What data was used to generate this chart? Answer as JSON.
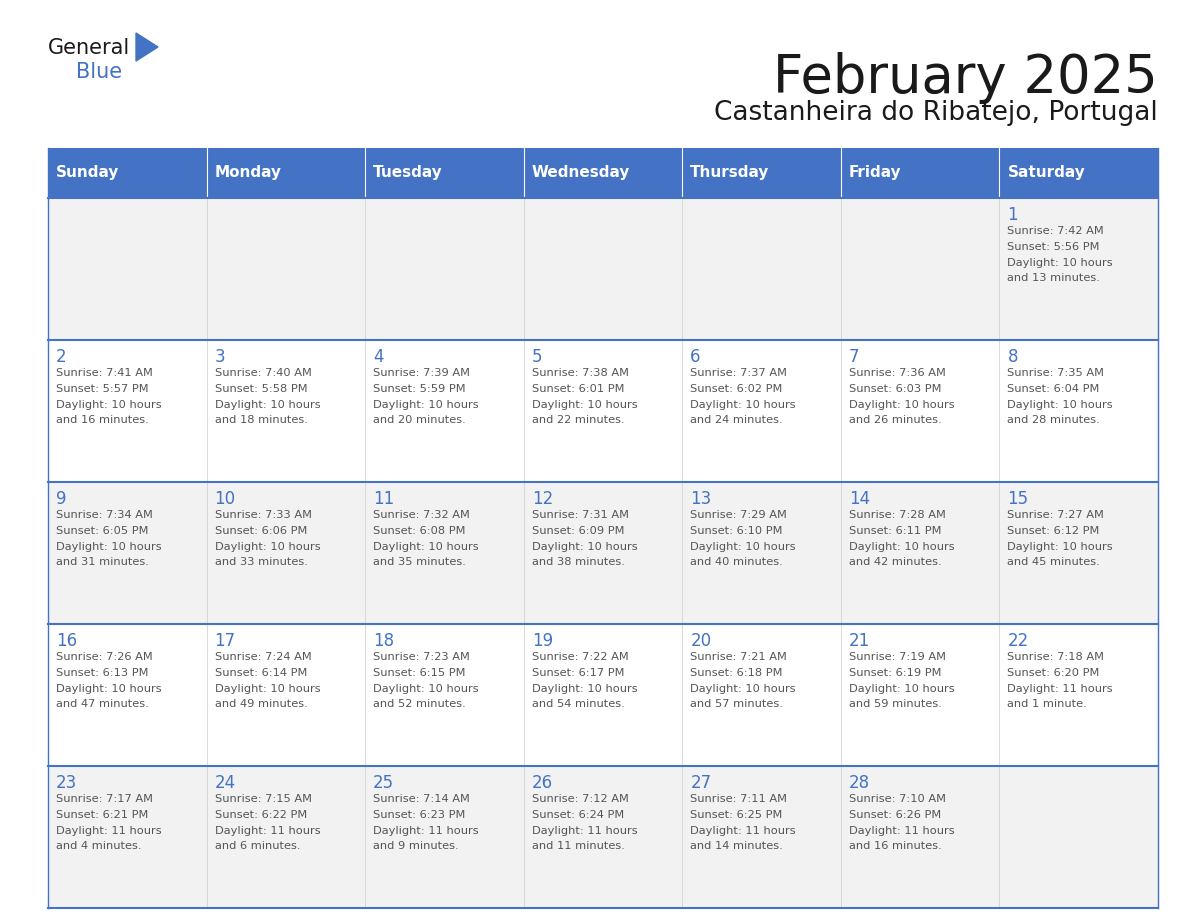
{
  "title": "February 2025",
  "subtitle": "Castanheira do Ribatejo, Portugal",
  "header_bg": "#4472C4",
  "header_text_color": "#FFFFFF",
  "cell_bg_even": "#F2F2F2",
  "cell_bg_odd": "#FFFFFF",
  "day_number_color": "#4472C4",
  "info_text_color": "#555555",
  "border_color": "#4472C4",
  "days_of_week": [
    "Sunday",
    "Monday",
    "Tuesday",
    "Wednesday",
    "Thursday",
    "Friday",
    "Saturday"
  ],
  "weeks": [
    [
      {
        "day": null,
        "sunrise": null,
        "sunset": null,
        "daylight": null
      },
      {
        "day": null,
        "sunrise": null,
        "sunset": null,
        "daylight": null
      },
      {
        "day": null,
        "sunrise": null,
        "sunset": null,
        "daylight": null
      },
      {
        "day": null,
        "sunrise": null,
        "sunset": null,
        "daylight": null
      },
      {
        "day": null,
        "sunrise": null,
        "sunset": null,
        "daylight": null
      },
      {
        "day": null,
        "sunrise": null,
        "sunset": null,
        "daylight": null
      },
      {
        "day": 1,
        "sunrise": "7:42 AM",
        "sunset": "5:56 PM",
        "daylight": "10 hours\nand 13 minutes."
      }
    ],
    [
      {
        "day": 2,
        "sunrise": "7:41 AM",
        "sunset": "5:57 PM",
        "daylight": "10 hours\nand 16 minutes."
      },
      {
        "day": 3,
        "sunrise": "7:40 AM",
        "sunset": "5:58 PM",
        "daylight": "10 hours\nand 18 minutes."
      },
      {
        "day": 4,
        "sunrise": "7:39 AM",
        "sunset": "5:59 PM",
        "daylight": "10 hours\nand 20 minutes."
      },
      {
        "day": 5,
        "sunrise": "7:38 AM",
        "sunset": "6:01 PM",
        "daylight": "10 hours\nand 22 minutes."
      },
      {
        "day": 6,
        "sunrise": "7:37 AM",
        "sunset": "6:02 PM",
        "daylight": "10 hours\nand 24 minutes."
      },
      {
        "day": 7,
        "sunrise": "7:36 AM",
        "sunset": "6:03 PM",
        "daylight": "10 hours\nand 26 minutes."
      },
      {
        "day": 8,
        "sunrise": "7:35 AM",
        "sunset": "6:04 PM",
        "daylight": "10 hours\nand 28 minutes."
      }
    ],
    [
      {
        "day": 9,
        "sunrise": "7:34 AM",
        "sunset": "6:05 PM",
        "daylight": "10 hours\nand 31 minutes."
      },
      {
        "day": 10,
        "sunrise": "7:33 AM",
        "sunset": "6:06 PM",
        "daylight": "10 hours\nand 33 minutes."
      },
      {
        "day": 11,
        "sunrise": "7:32 AM",
        "sunset": "6:08 PM",
        "daylight": "10 hours\nand 35 minutes."
      },
      {
        "day": 12,
        "sunrise": "7:31 AM",
        "sunset": "6:09 PM",
        "daylight": "10 hours\nand 38 minutes."
      },
      {
        "day": 13,
        "sunrise": "7:29 AM",
        "sunset": "6:10 PM",
        "daylight": "10 hours\nand 40 minutes."
      },
      {
        "day": 14,
        "sunrise": "7:28 AM",
        "sunset": "6:11 PM",
        "daylight": "10 hours\nand 42 minutes."
      },
      {
        "day": 15,
        "sunrise": "7:27 AM",
        "sunset": "6:12 PM",
        "daylight": "10 hours\nand 45 minutes."
      }
    ],
    [
      {
        "day": 16,
        "sunrise": "7:26 AM",
        "sunset": "6:13 PM",
        "daylight": "10 hours\nand 47 minutes."
      },
      {
        "day": 17,
        "sunrise": "7:24 AM",
        "sunset": "6:14 PM",
        "daylight": "10 hours\nand 49 minutes."
      },
      {
        "day": 18,
        "sunrise": "7:23 AM",
        "sunset": "6:15 PM",
        "daylight": "10 hours\nand 52 minutes."
      },
      {
        "day": 19,
        "sunrise": "7:22 AM",
        "sunset": "6:17 PM",
        "daylight": "10 hours\nand 54 minutes."
      },
      {
        "day": 20,
        "sunrise": "7:21 AM",
        "sunset": "6:18 PM",
        "daylight": "10 hours\nand 57 minutes."
      },
      {
        "day": 21,
        "sunrise": "7:19 AM",
        "sunset": "6:19 PM",
        "daylight": "10 hours\nand 59 minutes."
      },
      {
        "day": 22,
        "sunrise": "7:18 AM",
        "sunset": "6:20 PM",
        "daylight": "11 hours\nand 1 minute."
      }
    ],
    [
      {
        "day": 23,
        "sunrise": "7:17 AM",
        "sunset": "6:21 PM",
        "daylight": "11 hours\nand 4 minutes."
      },
      {
        "day": 24,
        "sunrise": "7:15 AM",
        "sunset": "6:22 PM",
        "daylight": "11 hours\nand 6 minutes."
      },
      {
        "day": 25,
        "sunrise": "7:14 AM",
        "sunset": "6:23 PM",
        "daylight": "11 hours\nand 9 minutes."
      },
      {
        "day": 26,
        "sunrise": "7:12 AM",
        "sunset": "6:24 PM",
        "daylight": "11 hours\nand 11 minutes."
      },
      {
        "day": 27,
        "sunrise": "7:11 AM",
        "sunset": "6:25 PM",
        "daylight": "11 hours\nand 14 minutes."
      },
      {
        "day": 28,
        "sunrise": "7:10 AM",
        "sunset": "6:26 PM",
        "daylight": "11 hours\nand 16 minutes."
      },
      {
        "day": null,
        "sunrise": null,
        "sunset": null,
        "daylight": null
      }
    ]
  ],
  "logo_general_color": "#1a1a1a",
  "logo_blue_color": "#4472C4",
  "logo_triangle_color": "#4472C4"
}
